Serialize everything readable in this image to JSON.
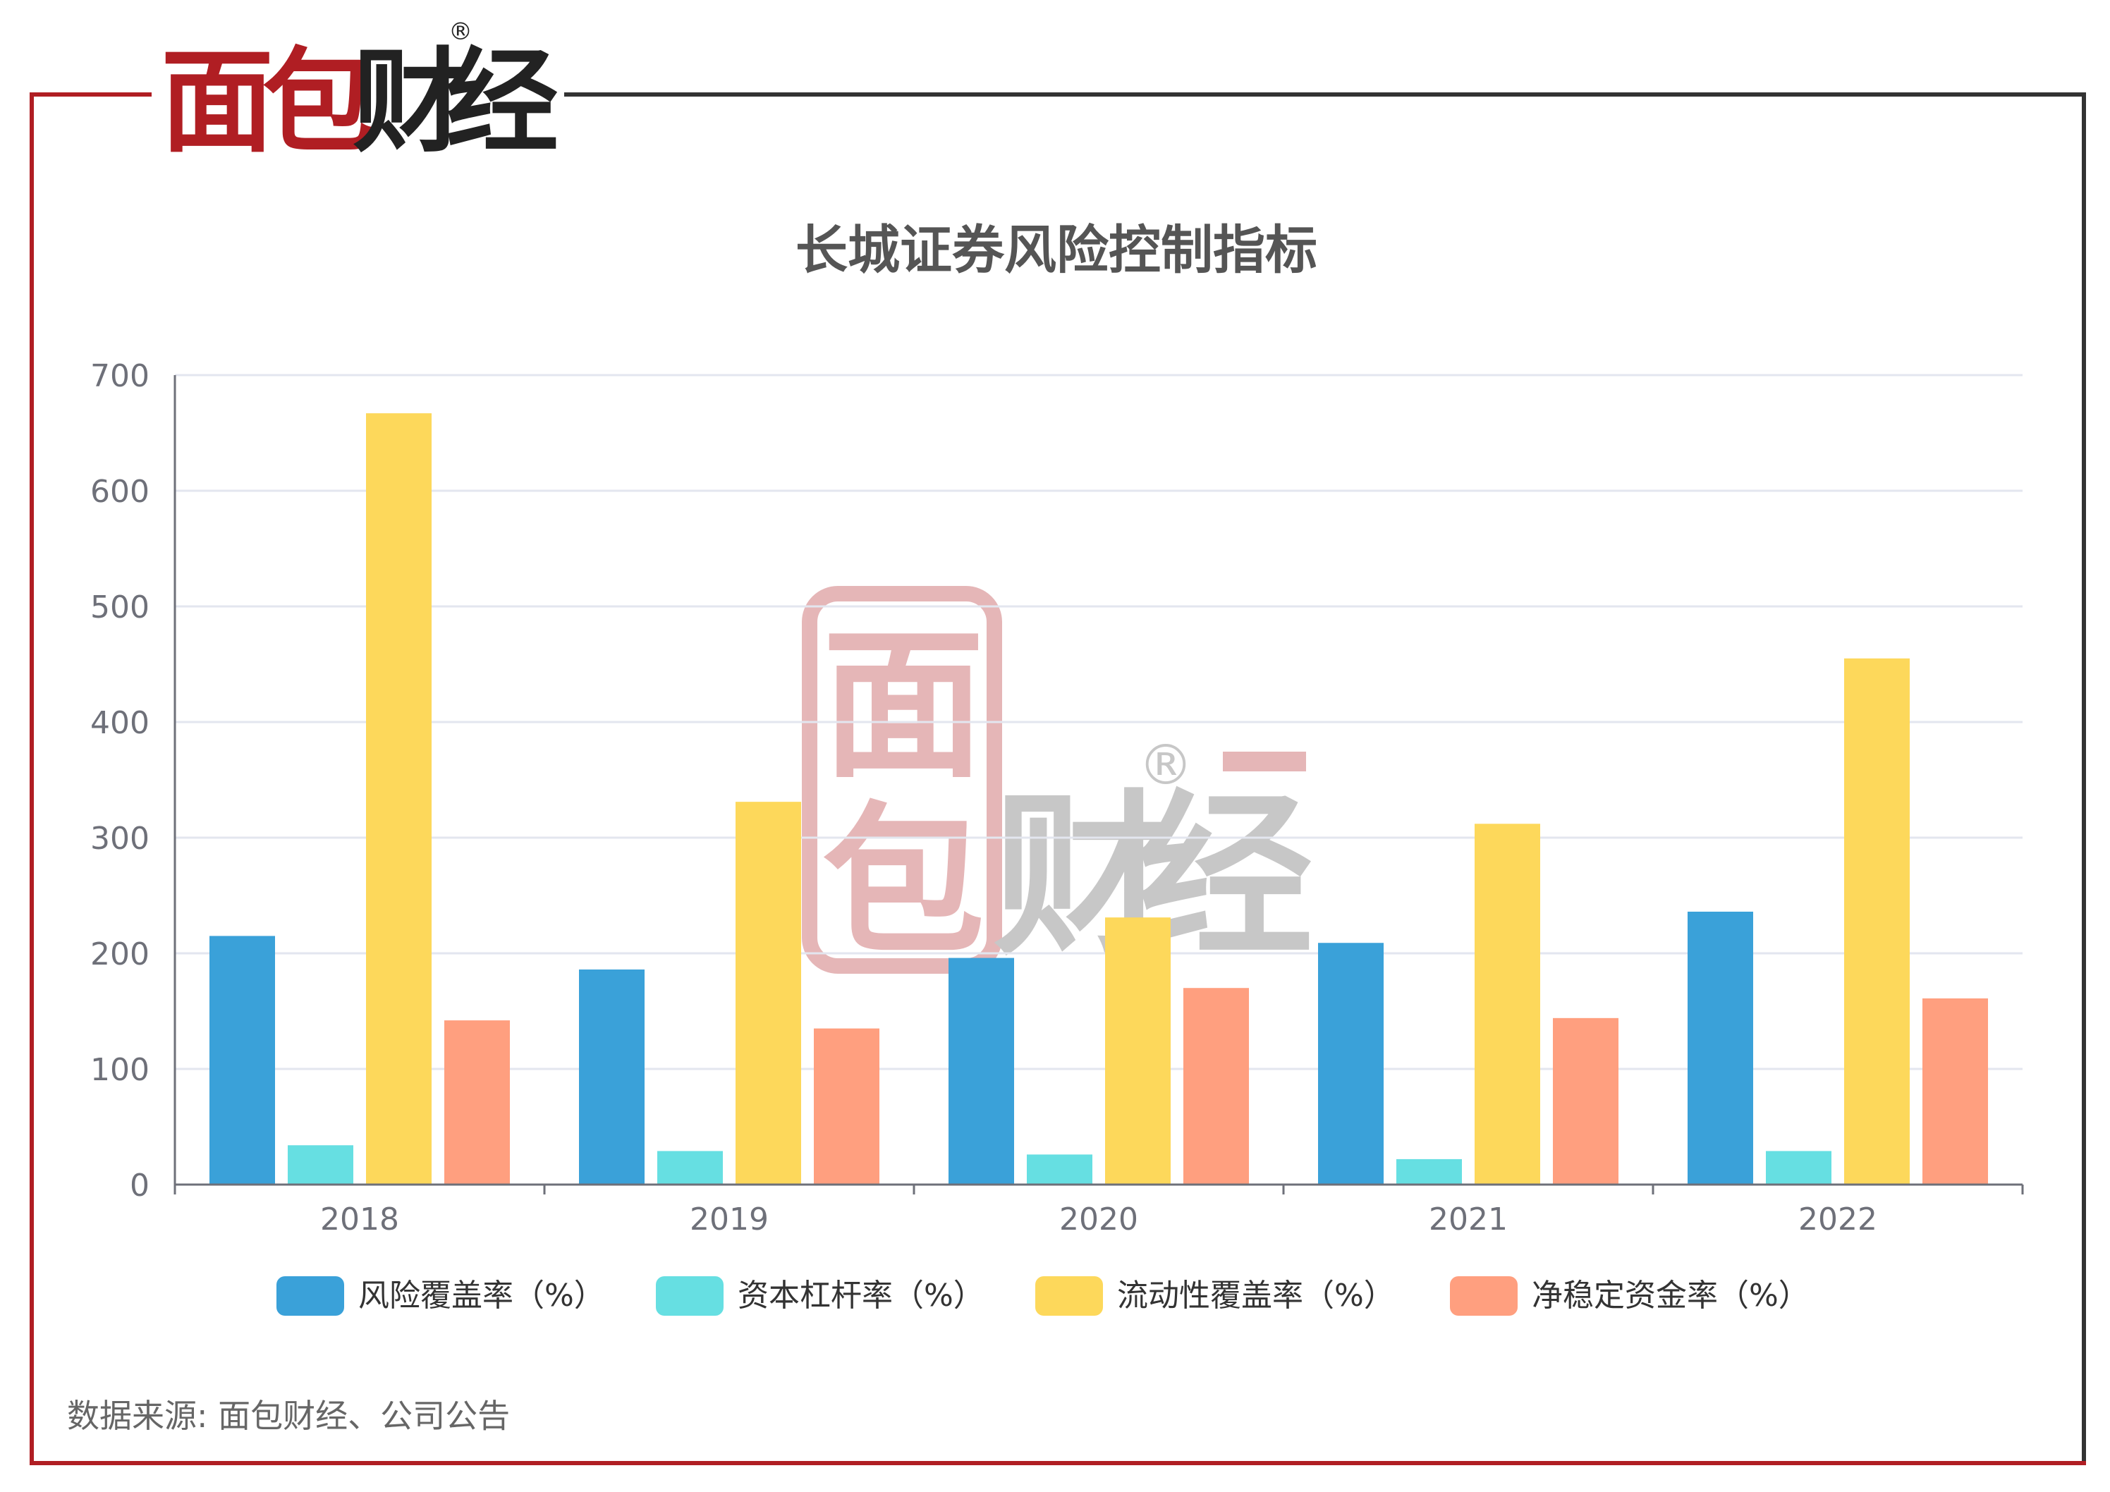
{
  "brand": {
    "logo_chars": [
      "面",
      "包",
      "财",
      "经"
    ],
    "registered_mark": "®",
    "watermark_chars": [
      "面",
      "包",
      "财",
      "经"
    ],
    "watermark_mark": "®",
    "primary_color": "#b01e23",
    "dark_color": "#222222"
  },
  "source_note": "数据来源: 面包财经、公司公告",
  "chart_data": {
    "type": "bar",
    "title": "长城证券风险控制指标",
    "categories": [
      "2018",
      "2019",
      "2020",
      "2021",
      "2022"
    ],
    "series": [
      {
        "name": "风险覆盖率（%）",
        "color": "#3aa1d9",
        "values": [
          215,
          186,
          196,
          209,
          236
        ]
      },
      {
        "name": "资本杠杆率（%）",
        "color": "#66dfe2",
        "values": [
          34,
          29,
          26,
          22,
          29
        ]
      },
      {
        "name": "流动性覆盖率（%）",
        "color": "#fdd85b",
        "values": [
          667,
          331,
          231,
          312,
          455
        ]
      },
      {
        "name": "净稳定资金率（%）",
        "color": "#ff9f7f",
        "values": [
          142,
          135,
          170,
          144,
          161
        ]
      }
    ],
    "yticks": [
      "0",
      "100",
      "200",
      "300",
      "400",
      "500",
      "600",
      "700"
    ],
    "ylim": [
      0,
      700
    ],
    "grid": true,
    "legend_position": "bottom"
  }
}
